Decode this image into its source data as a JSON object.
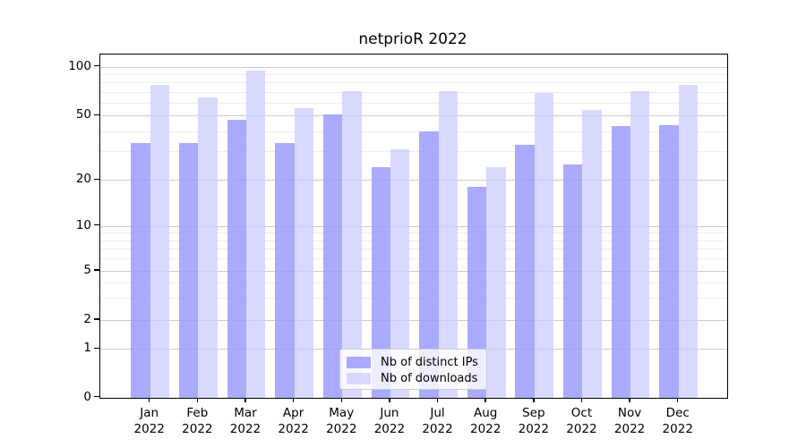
{
  "chart_data": {
    "type": "bar",
    "title": "netprioR 2022",
    "categories": [
      "Jan",
      "Feb",
      "Mar",
      "Apr",
      "May",
      "Jun",
      "Jul",
      "Aug",
      "Sep",
      "Oct",
      "Nov",
      "Dec"
    ],
    "category_year": "2022",
    "series": [
      {
        "name": "Nb of distinct IPs",
        "color": "#9999ffd4",
        "values": [
          34,
          34,
          47,
          34,
          51,
          24,
          40,
          18,
          33,
          25,
          43,
          44
        ]
      },
      {
        "name": "Nb of downloads",
        "color": "#ccccffbf",
        "values": [
          78,
          65,
          95,
          56,
          71,
          31,
          71,
          24,
          69,
          54,
          71,
          78
        ]
      }
    ],
    "yscale": "log-like (symlog)",
    "yticks": [
      100,
      50,
      20,
      10,
      5,
      2,
      1,
      0
    ],
    "yminor_ticks": [
      3,
      4,
      6,
      7,
      8,
      9,
      30,
      40,
      60,
      70,
      80,
      90
    ],
    "ylim": [
      0,
      120
    ],
    "grid": "on",
    "legend_position": "lower center",
    "colors": {
      "grid_major": "#cdcdcd",
      "grid_minor": "#ededed",
      "axis": "#000000",
      "background": "#ffffff"
    }
  }
}
